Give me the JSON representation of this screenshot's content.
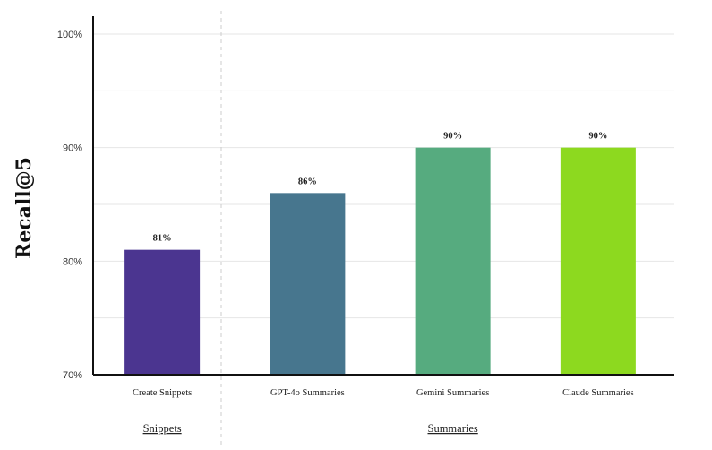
{
  "chart_data": {
    "type": "bar",
    "ylabel": "Recall@5",
    "xlabel": "",
    "ylim": [
      70,
      100
    ],
    "yticks": [
      {
        "value": 70,
        "label": "70%"
      },
      {
        "value": 80,
        "label": "80%"
      },
      {
        "value": 90,
        "label": "90%"
      },
      {
        "value": 100,
        "label": "100%"
      }
    ],
    "categories": [
      "Create Snippets",
      "GPT-4o Summaries",
      "Gemini Summaries",
      "Claude Summaries"
    ],
    "values": [
      81,
      86,
      90,
      90
    ],
    "data_labels": [
      "81%",
      "86%",
      "90%",
      "90%"
    ],
    "bar_colors": [
      "#4b3590",
      "#47768e",
      "#56ab7f",
      "#8dd91f"
    ],
    "groups": [
      {
        "label": "Snippets",
        "categories": [
          "Create Snippets"
        ]
      },
      {
        "label": "Summaries",
        "categories": [
          "GPT-4o Summaries",
          "Gemini Summaries",
          "Claude Summaries"
        ]
      }
    ],
    "grid": true,
    "legend": "none"
  }
}
